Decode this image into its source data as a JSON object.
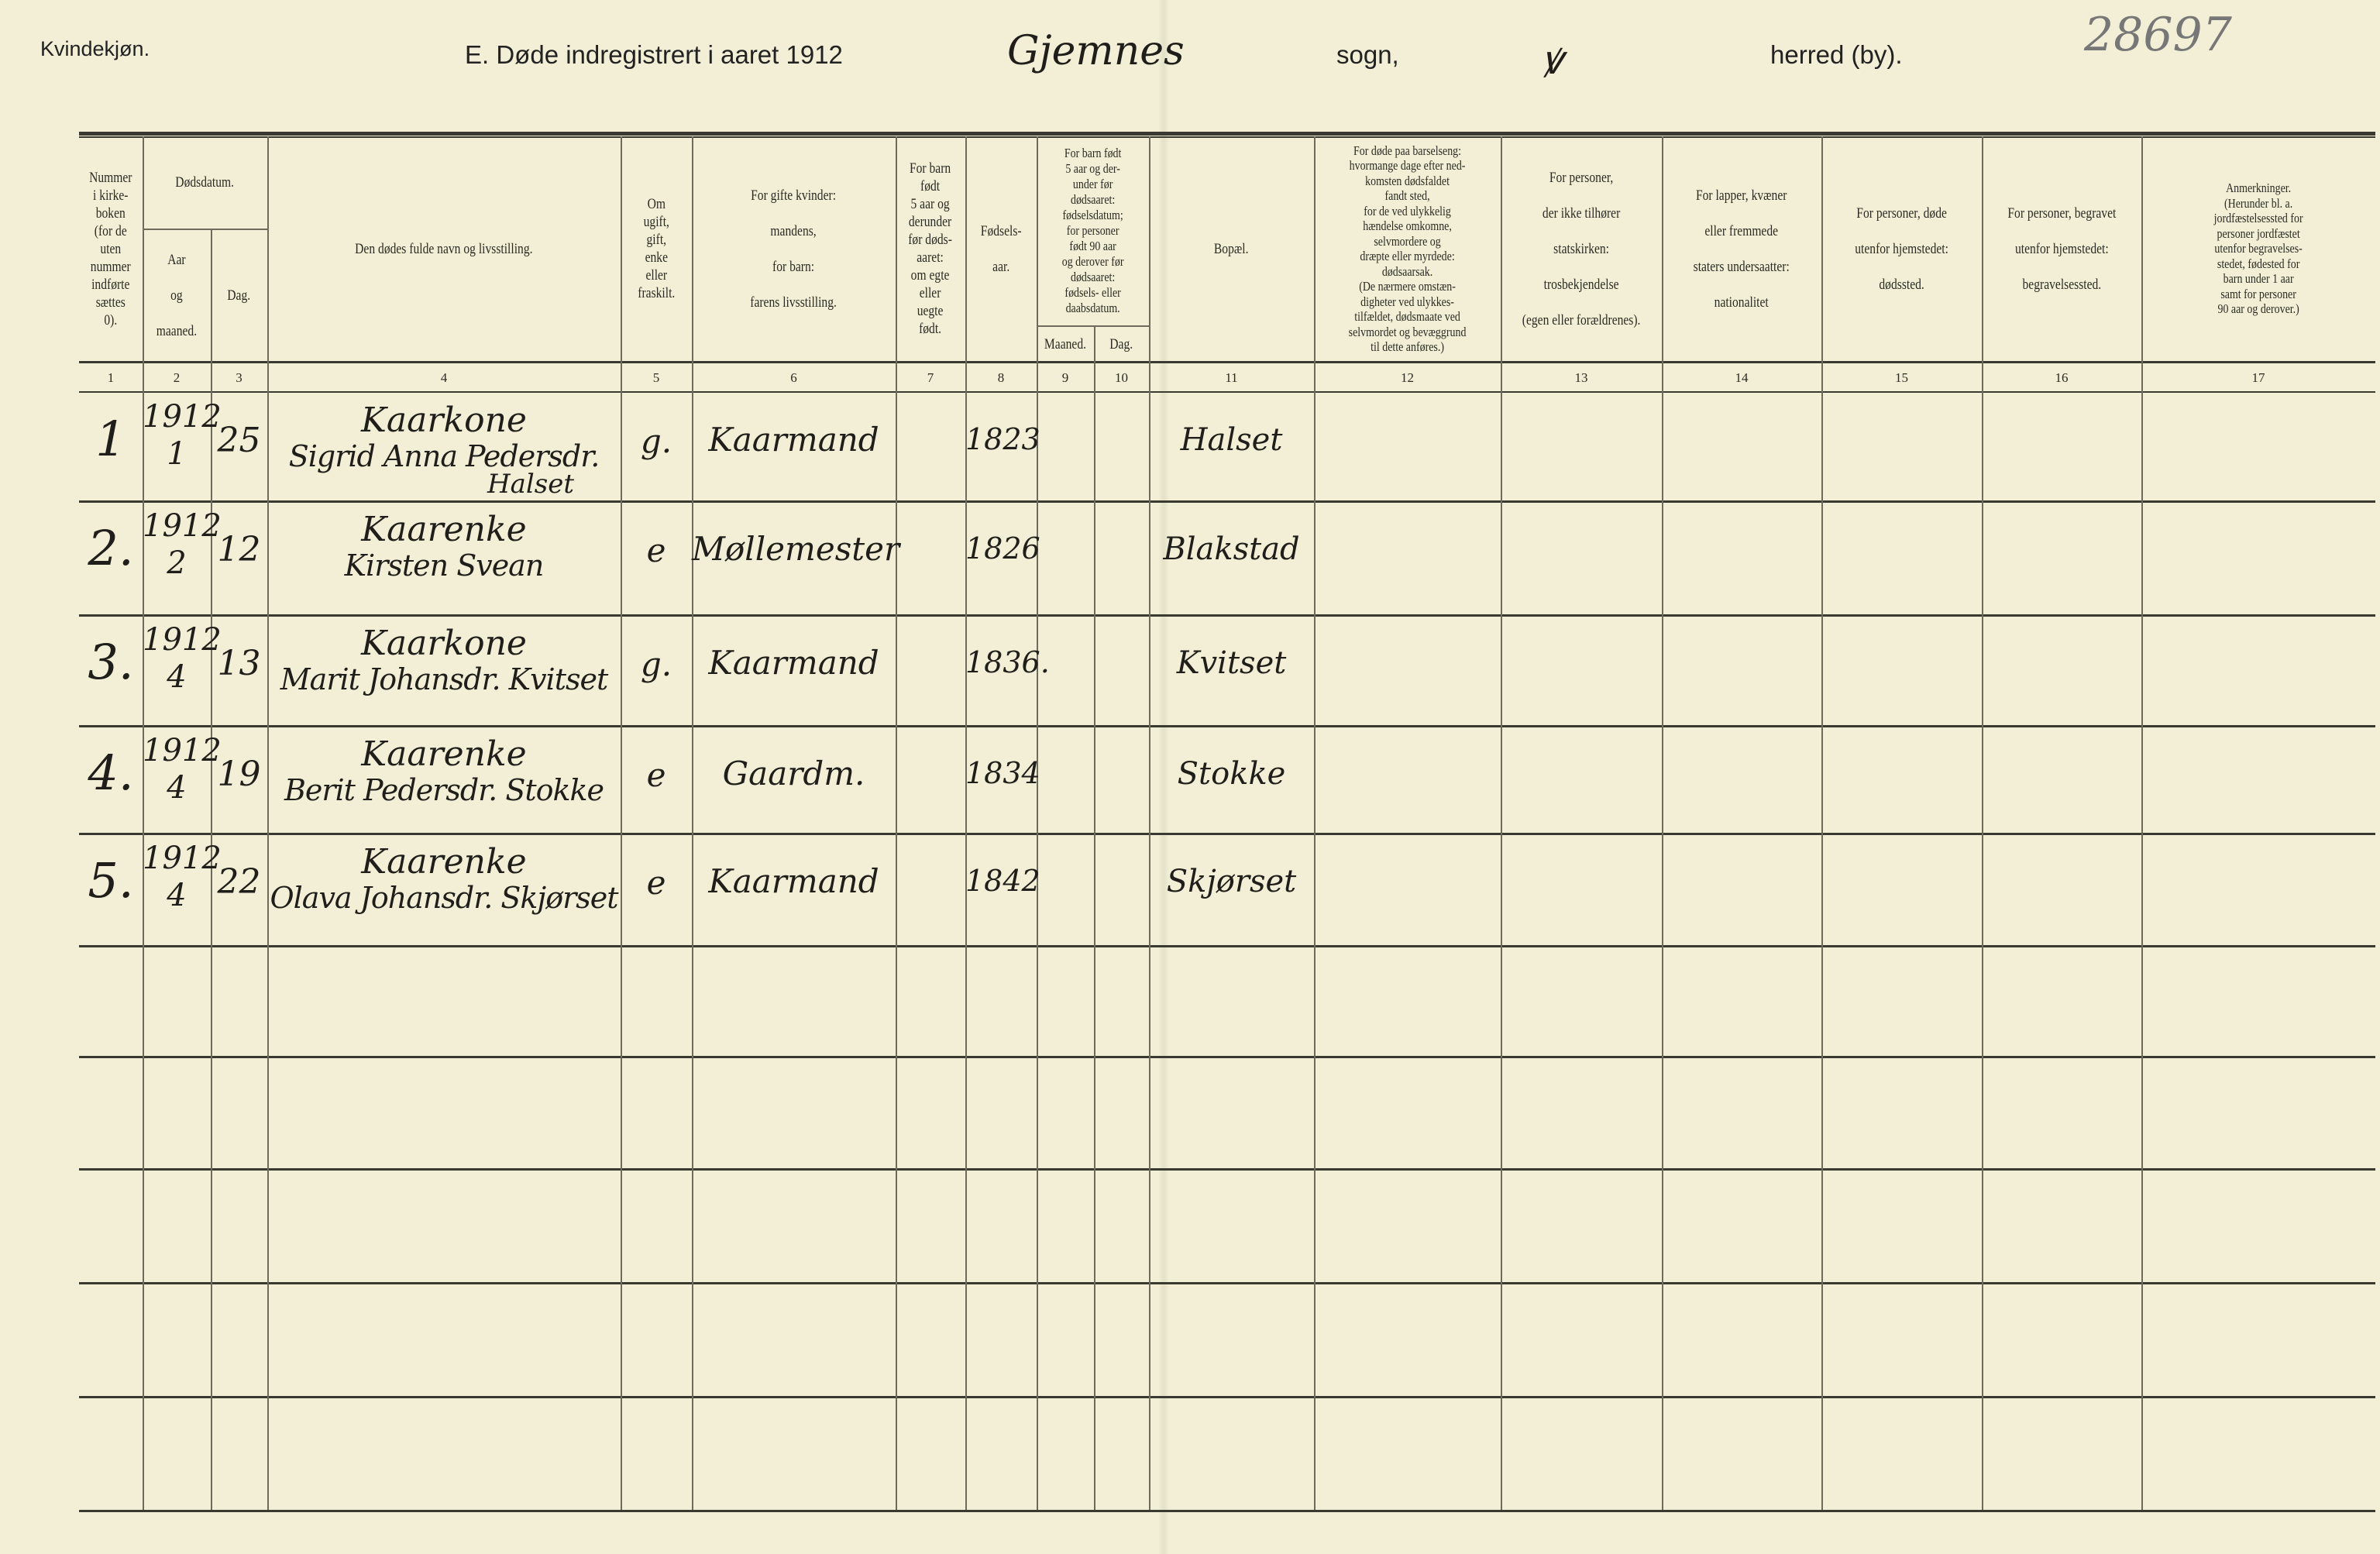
{
  "header": {
    "gender_label": "Kvindekjøn.",
    "title": "E.  Døde indregistrert i aaret 1912",
    "parish_handwritten": "Gjemnes",
    "sogn_label": "sogn,",
    "herred_handwritten": "ꝟ",
    "herred_label": "herred (by).",
    "archive_number": "28697"
  },
  "columns": [
    {
      "n": "1",
      "label": "Nummer\ni kirke-\nboken\n(for de\nuten\nnummer\nindførte\nsættes\n0)."
    },
    {
      "n": "2",
      "label": "Aar\n\nog\n\nmaaned."
    },
    {
      "n": "3",
      "label": "Dag."
    },
    {
      "n": "4",
      "label": "Den dødes fulde navn og livsstilling."
    },
    {
      "n": "5",
      "label": "Om\nugift,\ngift,\nenke\neller\nfraskilt."
    },
    {
      "n": "6",
      "label": "For gifte kvinder:\n\nmandens,\n\nfor barn:\n\nfarens livsstilling."
    },
    {
      "n": "7",
      "label": "For barn\nfødt\n5 aar og\nderunder\nfør døds-\naaret:\nom egte\neller\nuegte\nfødt."
    },
    {
      "n": "8",
      "label": "Fødsels-\n\naar."
    },
    {
      "n": "9",
      "label": "Maaned."
    },
    {
      "n": "10",
      "label": "Dag."
    },
    {
      "n": "11",
      "label": "Bopæl."
    },
    {
      "n": "12",
      "label": "For døde paa barselseng:\nhvormange dage efter ned-\nkomsten dødsfaldet\nfandt sted,\nfor de ved ulykkelig\nhændelse omkomne,\nselvmordere og\ndræpte eller myrdede:\ndødsaarsak.\n(De nærmere omstæn-\ndigheter ved ulykkes-\ntilfældet, dødsmaate ved\nselvmordet og bevæggrund\ntil dette anføres.)"
    },
    {
      "n": "13",
      "label": "For personer,\n\nder ikke tilhører\n\nstatskirken:\n\ntrosbekjendelse\n\n(egen eller forældrenes)."
    },
    {
      "n": "14",
      "label": "For lapper, kvæner\n\neller fremmede\n\nstaters undersaatter:\n\nnationalitet"
    },
    {
      "n": "15",
      "label": "For personer, døde\n\nutenfor hjemstedet:\n\ndødssted."
    },
    {
      "n": "16",
      "label": "For personer, begravet\n\nutenfor hjemstedet:\n\nbegravelsessted."
    },
    {
      "n": "17",
      "label": "Anmerkninger.\n(Herunder bl. a.\njordfæstelsessted for\npersoner jordfæstet\nutenfor begravelses-\nstedet, fødested for\nbarn under 1 aar\nsamt for personer\n90 aar og derover.)"
    }
  ],
  "group_headers": {
    "death_date": "Dødsdatum.",
    "child_birth": "For barn født\n5 aar og der-\nunder før\ndødsaaret:\nfødselsdatum;\nfor personer\nfødt 90 aar\nog derover før\ndødsaaret:\nfødsels- eller\ndaabsdatum."
  },
  "entries": [
    {
      "no": "1",
      "year": "1912",
      "month": "1",
      "day": "25",
      "occupation": "Kaarkone",
      "name": "Sigrid Anna Pedersdr.",
      "name2": "Halset",
      "status": "g.",
      "spouse": "Kaarmand",
      "birth_year": "1823",
      "residence": "Halset"
    },
    {
      "no": "2.",
      "year": "1912",
      "month": "2",
      "day": "12",
      "occupation": "Kaarenke",
      "name": "Kirsten Svean",
      "name2": "",
      "status": "e",
      "spouse": "Møllemester",
      "birth_year": "1826",
      "residence": "Blakstad"
    },
    {
      "no": "3.",
      "year": "1912",
      "month": "4",
      "day": "13",
      "occupation": "Kaarkone",
      "name": "Marit Johansdr. Kvitset",
      "name2": "",
      "status": "g.",
      "spouse": "Kaarmand",
      "birth_year": "1836.",
      "residence": "Kvitset"
    },
    {
      "no": "4.",
      "year": "1912",
      "month": "4",
      "day": "19",
      "occupation": "Kaarenke",
      "name": "Berit Pedersdr. Stokke",
      "name2": "",
      "status": "e",
      "spouse": "Gaardm.",
      "birth_year": "1834",
      "residence": "Stokke"
    },
    {
      "no": "5.",
      "year": "1912",
      "month": "4",
      "day": "22",
      "occupation": "Kaarenke",
      "name": "Olava Johansdr. Skjørset",
      "name2": "",
      "status": "e",
      "spouse": "Kaarmand",
      "birth_year": "1842",
      "residence": "Skjørset"
    }
  ]
}
